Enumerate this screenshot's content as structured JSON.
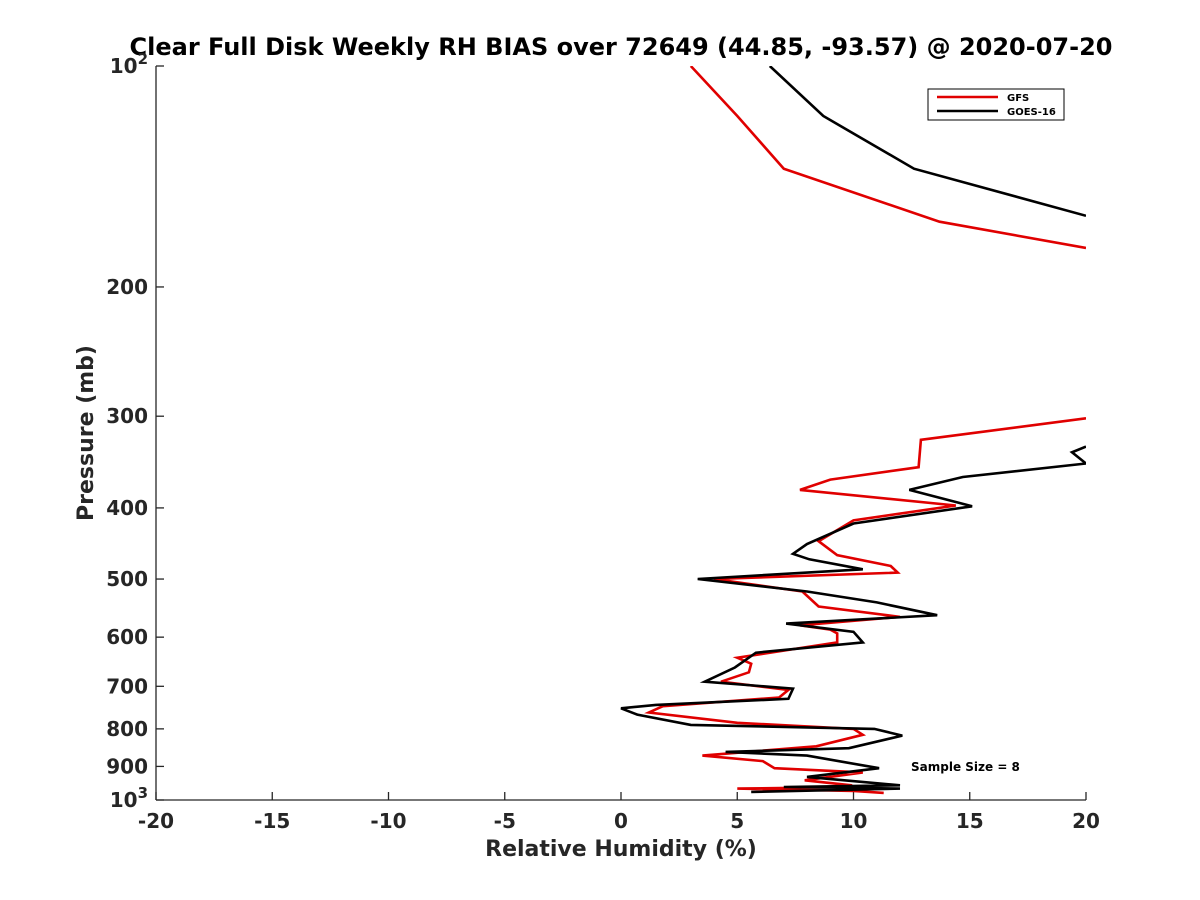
{
  "chart_data": {
    "type": "line",
    "title": "Clear Full Disk Weekly RH BIAS over 72649 (44.85, -93.57) @ 2020-07-20",
    "xlabel": "Relative Humidity (%)",
    "ylabel": "Pressure (mb)",
    "xlim": [
      -20,
      20
    ],
    "ylim": [
      100,
      1000
    ],
    "y_scale": "log",
    "y_reversed": true,
    "grid": false,
    "legend_position": "top-right",
    "x_ticks": [
      -20,
      -15,
      -10,
      -5,
      0,
      5,
      10,
      15,
      20
    ],
    "x_tick_labels": [
      "-20",
      "-15",
      "-10",
      "-5",
      "0",
      "5",
      "10",
      "15",
      "20"
    ],
    "y_ticks": [
      200,
      300,
      400,
      500,
      600,
      700,
      800,
      900
    ],
    "y_tick_labels": [
      "200",
      "300",
      "400",
      "500",
      "600",
      "700",
      "800",
      "900"
    ],
    "y_tick_top": {
      "base": "10",
      "exp": "2"
    },
    "y_tick_bottom": {
      "base": "10",
      "exp": "3"
    },
    "annotation": "Sample Size = 8",
    "series": [
      {
        "name": "GFS",
        "color": "#e00000",
        "points": [
          [
            3.0,
            100
          ],
          [
            5.0,
            117
          ],
          [
            7.0,
            138
          ],
          [
            13.7,
            163
          ],
          [
            20.0,
            177
          ],
          [
            null,
            null
          ],
          [
            20.0,
            302
          ],
          [
            12.9,
            323
          ],
          [
            12.8,
            352
          ],
          [
            9.0,
            366
          ],
          [
            7.7,
            378
          ],
          [
            14.4,
            397
          ],
          [
            10.0,
            416
          ],
          [
            8.5,
            444
          ],
          [
            9.3,
            464
          ],
          [
            11.6,
            480
          ],
          [
            11.9,
            490
          ],
          [
            4.0,
            500
          ],
          [
            7.8,
            520
          ],
          [
            8.5,
            545
          ],
          [
            12.0,
            563
          ],
          [
            7.7,
            578
          ],
          [
            9.0,
            586
          ],
          [
            9.3,
            593
          ],
          [
            9.3,
            610
          ],
          [
            5.0,
            640
          ],
          [
            5.6,
            652
          ],
          [
            5.5,
            670
          ],
          [
            4.3,
            690
          ],
          [
            7.2,
            708
          ],
          [
            6.8,
            725
          ],
          [
            1.8,
            745
          ],
          [
            1.2,
            760
          ],
          [
            5.0,
            785
          ],
          [
            10.0,
            800
          ],
          [
            10.4,
            815
          ],
          [
            8.4,
            845
          ],
          [
            3.5,
            870
          ],
          [
            6.1,
            885
          ],
          [
            6.6,
            905
          ],
          [
            10.4,
            917
          ],
          [
            7.9,
            940
          ],
          [
            9.9,
            955
          ],
          [
            10.0,
            960
          ],
          [
            5.0,
            965
          ],
          [
            10.0,
            972
          ],
          [
            11.3,
            978
          ]
        ]
      },
      {
        "name": "GOES-16",
        "color": "#000000",
        "points": [
          [
            6.4,
            100
          ],
          [
            8.7,
            117
          ],
          [
            12.6,
            138
          ],
          [
            20.0,
            160
          ],
          [
            null,
            null
          ],
          [
            20.0,
            330
          ],
          [
            19.4,
            336
          ],
          [
            20.0,
            348
          ],
          [
            14.7,
            363
          ],
          [
            12.4,
            378
          ],
          [
            15.1,
            398
          ],
          [
            10.0,
            420
          ],
          [
            8.0,
            448
          ],
          [
            7.4,
            462
          ],
          [
            8.1,
            470
          ],
          [
            10.4,
            485
          ],
          [
            3.3,
            500
          ],
          [
            8.0,
            520
          ],
          [
            11.0,
            538
          ],
          [
            13.6,
            560
          ],
          [
            7.1,
            575
          ],
          [
            10.0,
            590
          ],
          [
            10.4,
            610
          ],
          [
            5.8,
            630
          ],
          [
            4.9,
            660
          ],
          [
            3.6,
            690
          ],
          [
            7.4,
            705
          ],
          [
            7.2,
            728
          ],
          [
            1.5,
            742
          ],
          [
            0.0,
            750
          ],
          [
            0.7,
            765
          ],
          [
            3.0,
            790
          ],
          [
            10.9,
            800
          ],
          [
            12.1,
            817
          ],
          [
            9.8,
            850
          ],
          [
            4.5,
            860
          ],
          [
            8.0,
            870
          ],
          [
            11.1,
            905
          ],
          [
            8.0,
            930
          ],
          [
            12.0,
            955
          ],
          [
            7.0,
            960
          ],
          [
            12.0,
            965
          ],
          [
            5.6,
            975
          ]
        ]
      }
    ]
  }
}
